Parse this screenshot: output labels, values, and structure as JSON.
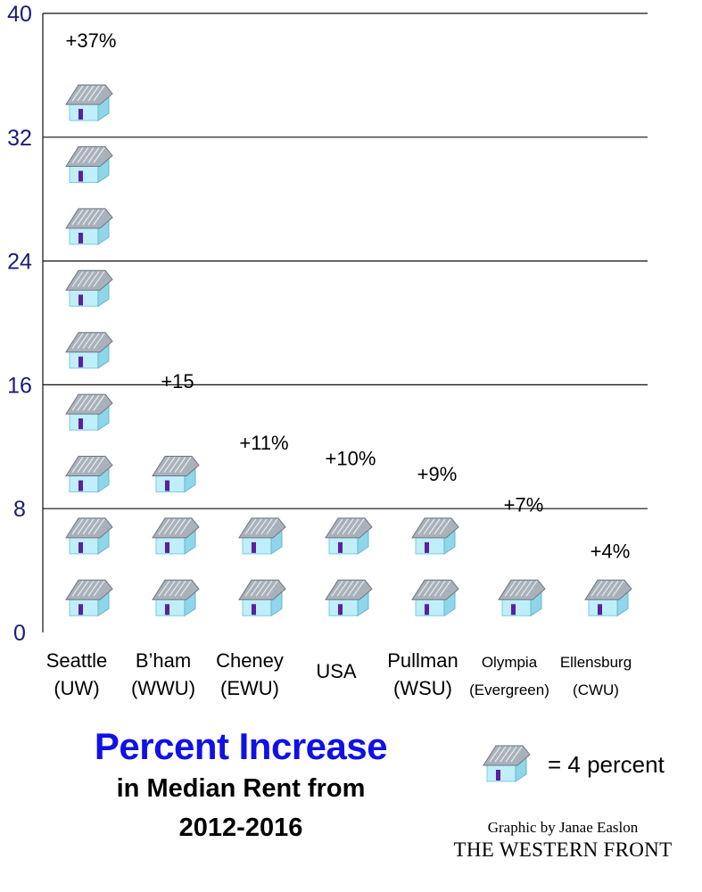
{
  "chart_data": {
    "type": "bar",
    "categories": [
      [
        "Seattle",
        "(UW)"
      ],
      [
        "B’ham",
        "(WWU)"
      ],
      [
        "Cheney",
        "(EWU)"
      ],
      [
        "USA"
      ],
      [
        "Pullman",
        "(WSU)"
      ],
      [
        "Olympia",
        "(Evergreen)"
      ],
      [
        "Ellensburg",
        "(CWU)"
      ]
    ],
    "values": [
      37,
      15,
      11,
      10,
      9,
      7,
      4
    ],
    "data_labels": [
      "+37%",
      "+15",
      "+11%",
      "+10%",
      "+9%",
      "+7%",
      "+4%"
    ],
    "yticks": [
      "0",
      "8",
      "16",
      "24",
      "32",
      "40"
    ],
    "ylim": [
      0,
      40
    ],
    "grid": true,
    "unit_per_icon": 4,
    "colors": {
      "axis": "#1a1a7a",
      "roof": "#9aa3ad",
      "wall": "#bfeffb",
      "door": "#5b1fa0",
      "title": "#1010e8"
    }
  },
  "title": "Percent Increase",
  "subtitle_line1": "in Median Rent from",
  "subtitle_line2": "2012-2016",
  "legend_text": "= 4 percent",
  "legend_icon": "house-icon",
  "credit": "Graphic by Janae Easlon",
  "publication": "THE WESTERN FRONT"
}
